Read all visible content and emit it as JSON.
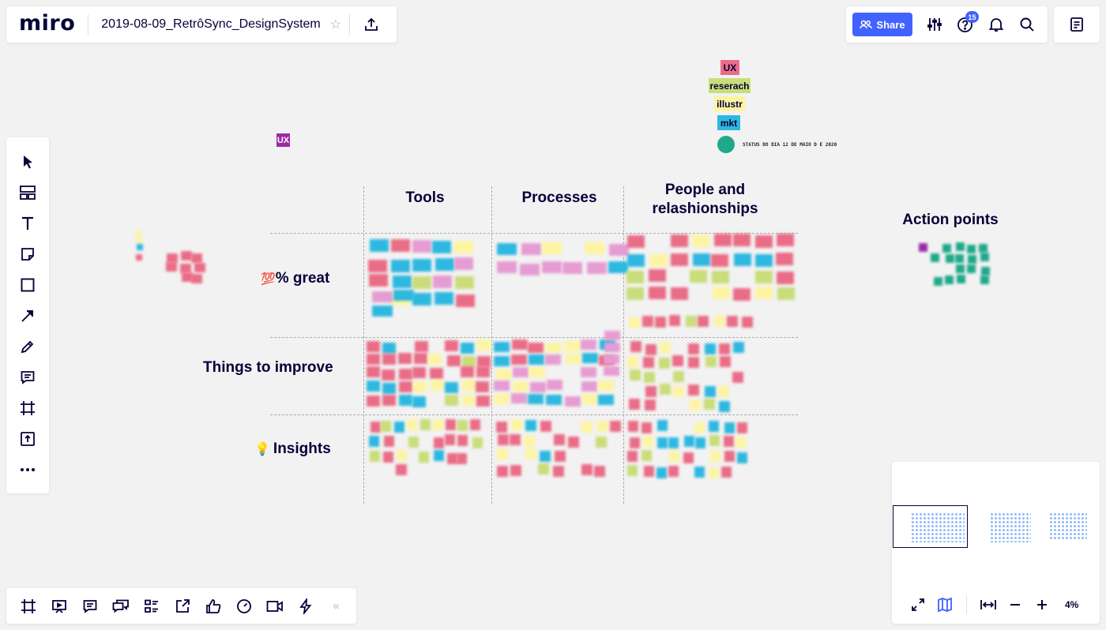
{
  "app": {
    "logo": "miro",
    "board_title": "2019-08-09_RetrôSync_DesignSystem",
    "share_label": "Share",
    "help_badge": "15",
    "zoom_level": "4%"
  },
  "board": {
    "columns": [
      "Tools",
      "Processes",
      "People and relashionships"
    ],
    "rows": [
      {
        "emoji": "💯",
        "label": "% great"
      },
      {
        "emoji": "",
        "label": "Things to improve"
      },
      {
        "emoji": "💡",
        "label": "Insights"
      }
    ],
    "action_points": "Action points",
    "ux_tag": "UX",
    "legend": [
      "UX",
      "reserach",
      "illustr",
      "mkt"
    ],
    "status_text": "STATUS DO DIA 12 DE MAIO D E 2020"
  },
  "colors": {
    "accent": "#4262ff",
    "pink": "#ea6d87",
    "lilac": "#e59cd3",
    "cyan": "#2eb8e0",
    "lime": "#c9dd7a",
    "yellow": "#fdf4a3",
    "teal": "#1fa88b",
    "purple": "#9b2ba5"
  }
}
